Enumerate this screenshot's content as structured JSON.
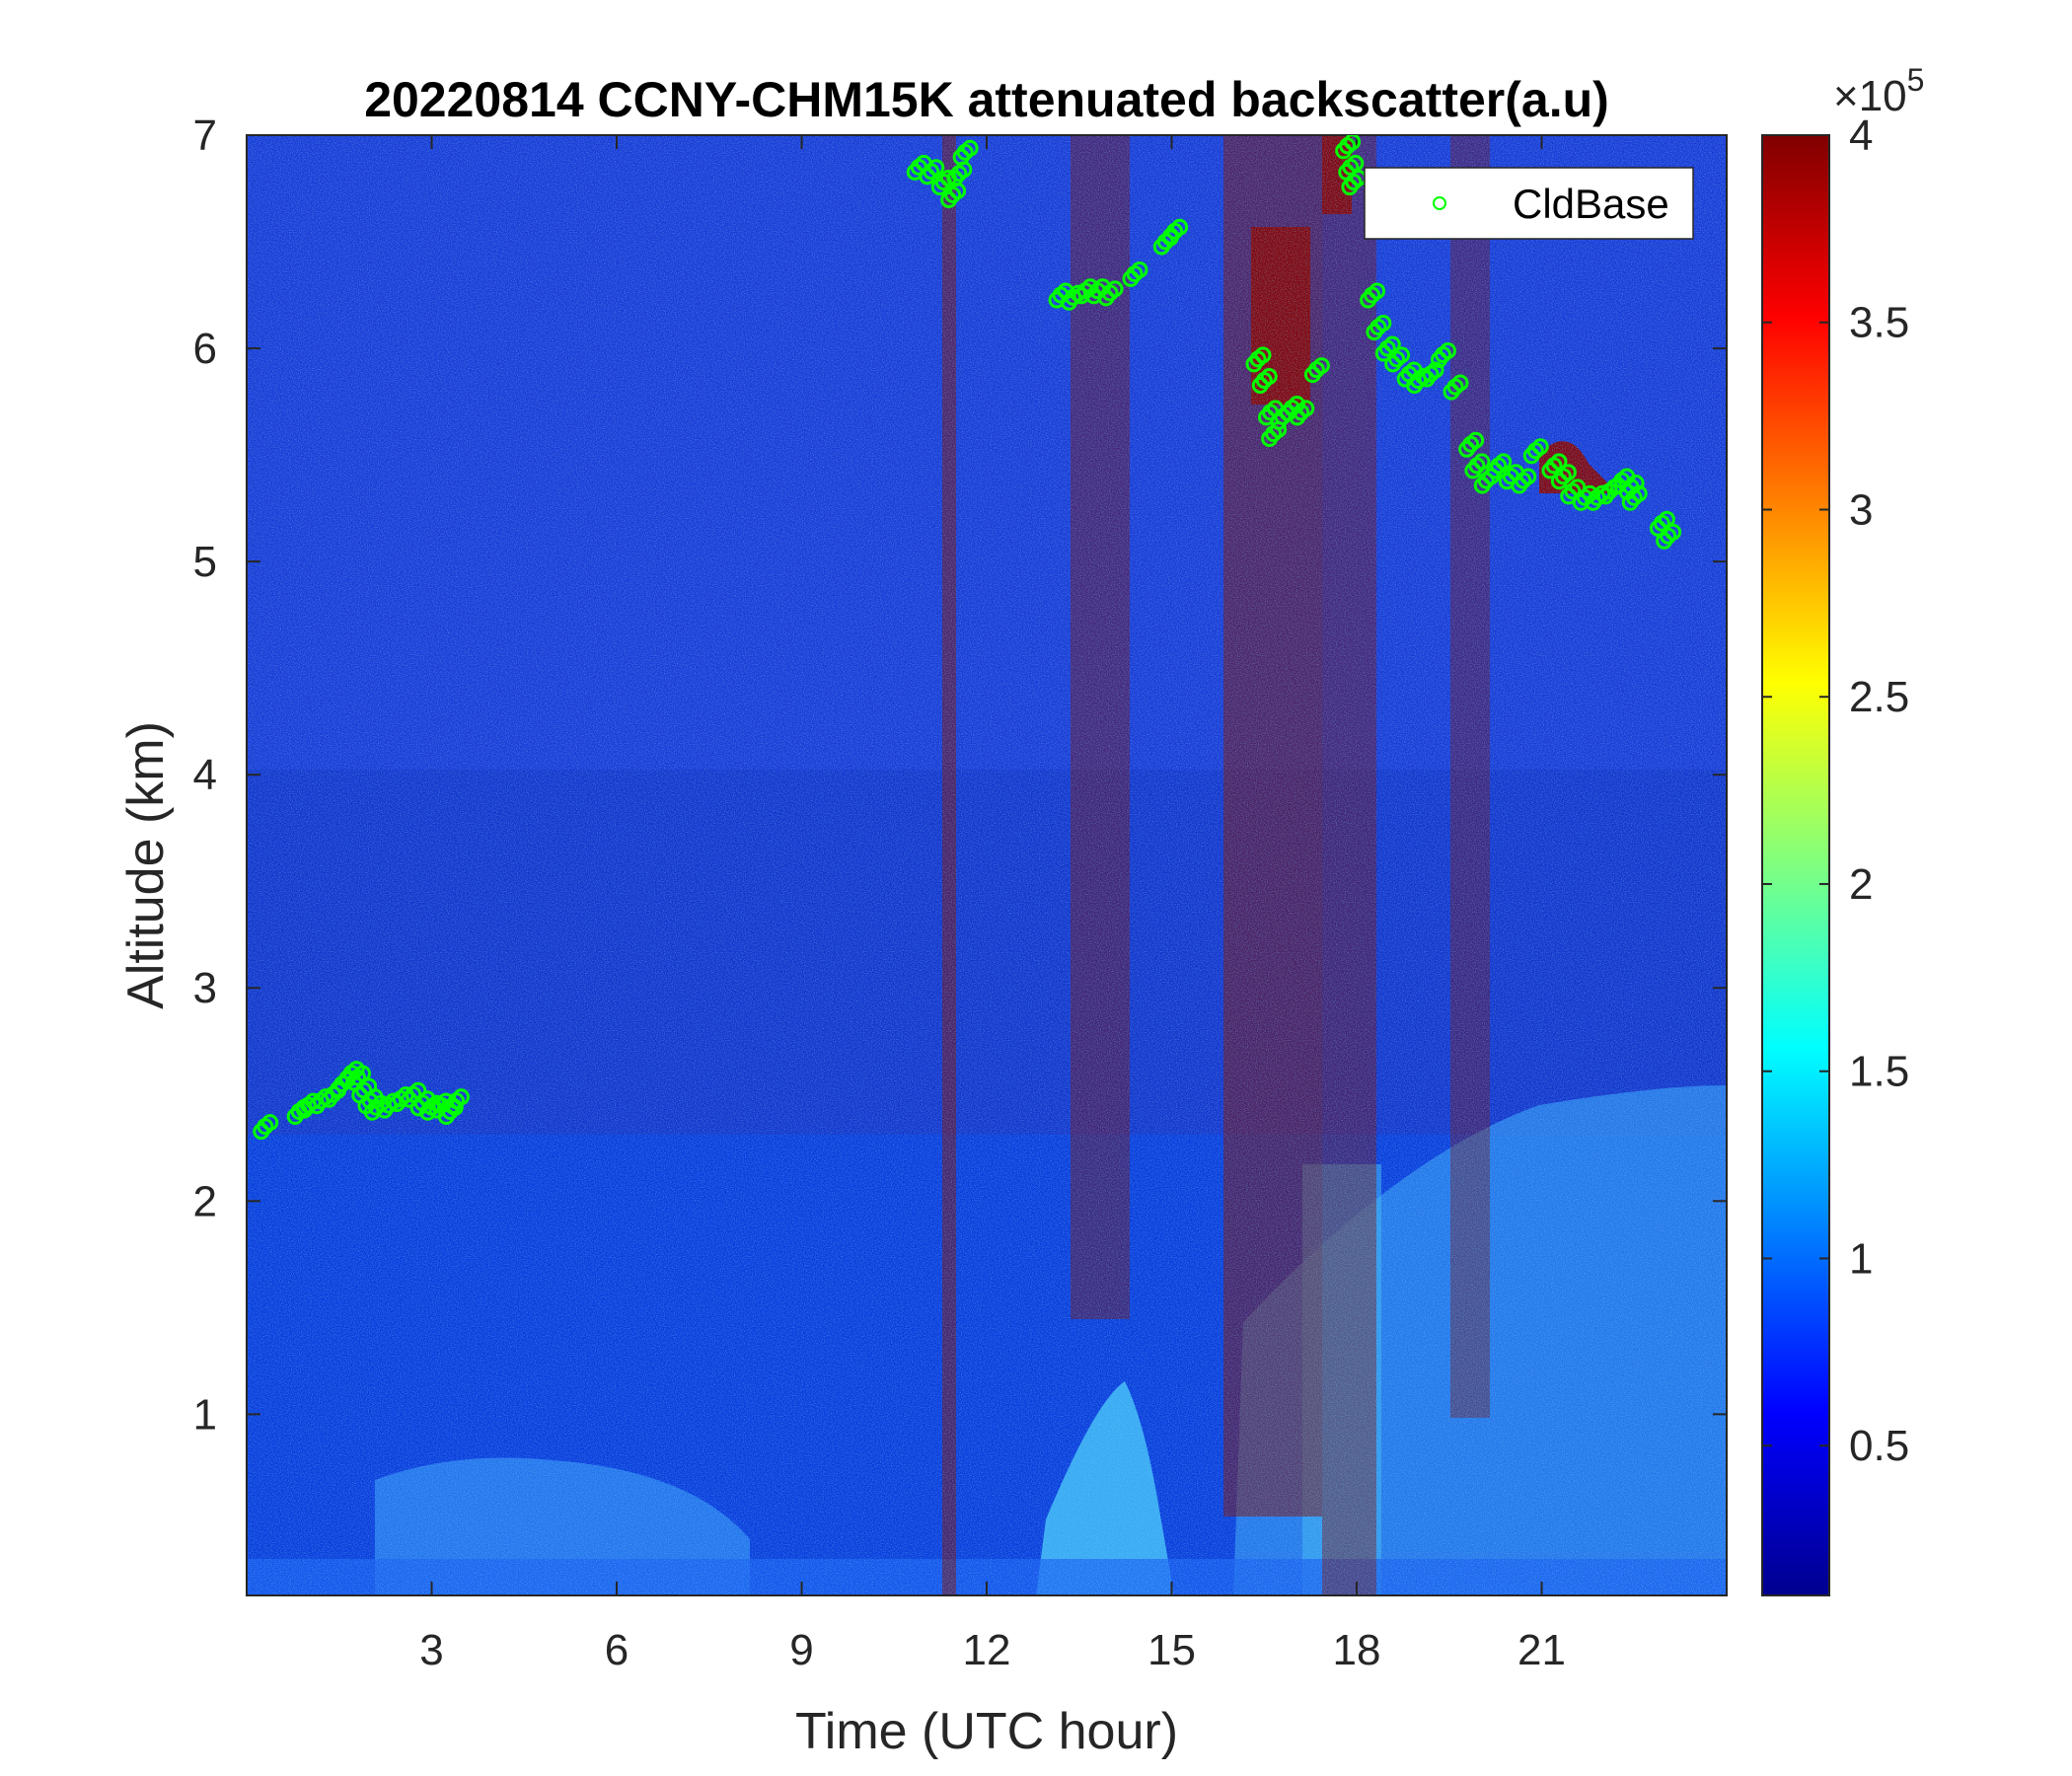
{
  "chart_data": {
    "type": "heatmap",
    "title": "20220814 CCNY-CHM15K attenuated backscatter(a.u)",
    "xlabel": "Time (UTC hour)",
    "ylabel": "Altitude (km)",
    "xlim": [
      0,
      24
    ],
    "ylim": [
      0.15,
      7
    ],
    "x_ticks": [
      "3",
      "6",
      "9",
      "12",
      "15",
      "18",
      "21"
    ],
    "y_ticks": [
      "1",
      "2",
      "3",
      "4",
      "5",
      "6",
      "7"
    ],
    "colorbar": {
      "colormap": "jet",
      "range": [
        0.1,
        4
      ],
      "ticks": [
        "0.5",
        "1",
        "1.5",
        "2",
        "2.5",
        "3",
        "3.5",
        "4"
      ],
      "exponent_label": "×10",
      "exponent": "5"
    },
    "legend": {
      "position": "top-right",
      "entries": [
        "CldBase"
      ]
    },
    "series": [
      {
        "name": "CldBase",
        "marker": "circle",
        "color": "#00ff00",
        "points": [
          [
            0.3,
            2.35
          ],
          [
            0.85,
            2.42
          ],
          [
            1.0,
            2.45
          ],
          [
            1.2,
            2.47
          ],
          [
            1.4,
            2.5
          ],
          [
            1.55,
            2.55
          ],
          [
            1.7,
            2.6
          ],
          [
            1.8,
            2.58
          ],
          [
            1.9,
            2.52
          ],
          [
            2.0,
            2.47
          ],
          [
            2.1,
            2.44
          ],
          [
            2.3,
            2.45
          ],
          [
            2.5,
            2.48
          ],
          [
            2.7,
            2.5
          ],
          [
            2.85,
            2.46
          ],
          [
            3.0,
            2.44
          ],
          [
            3.15,
            2.45
          ],
          [
            3.3,
            2.42
          ],
          [
            3.4,
            2.47
          ],
          [
            10.9,
            6.85
          ],
          [
            11.1,
            6.83
          ],
          [
            11.3,
            6.78
          ],
          [
            11.45,
            6.72
          ],
          [
            11.55,
            6.82
          ],
          [
            11.65,
            6.92
          ],
          [
            13.2,
            6.25
          ],
          [
            13.4,
            6.24
          ],
          [
            13.6,
            6.27
          ],
          [
            13.8,
            6.27
          ],
          [
            14.0,
            6.26
          ],
          [
            14.4,
            6.35
          ],
          [
            14.9,
            6.5
          ],
          [
            15.05,
            6.55
          ],
          [
            16.4,
            5.95
          ],
          [
            16.5,
            5.85
          ],
          [
            16.6,
            5.7
          ],
          [
            16.65,
            5.6
          ],
          [
            16.8,
            5.68
          ],
          [
            16.95,
            5.72
          ],
          [
            17.1,
            5.7
          ],
          [
            17.35,
            5.9
          ],
          [
            17.85,
            6.95
          ],
          [
            17.9,
            6.85
          ],
          [
            17.95,
            6.78
          ],
          [
            18.25,
            6.25
          ],
          [
            18.35,
            6.1
          ],
          [
            18.5,
            6.0
          ],
          [
            18.65,
            5.95
          ],
          [
            18.85,
            5.88
          ],
          [
            19.0,
            5.85
          ],
          [
            19.2,
            5.88
          ],
          [
            19.4,
            5.97
          ],
          [
            19.6,
            5.82
          ],
          [
            19.85,
            5.55
          ],
          [
            19.95,
            5.45
          ],
          [
            20.1,
            5.38
          ],
          [
            20.3,
            5.45
          ],
          [
            20.5,
            5.4
          ],
          [
            20.7,
            5.38
          ],
          [
            20.9,
            5.52
          ],
          [
            21.2,
            5.45
          ],
          [
            21.35,
            5.4
          ],
          [
            21.5,
            5.33
          ],
          [
            21.7,
            5.3
          ],
          [
            21.9,
            5.3
          ],
          [
            22.1,
            5.33
          ],
          [
            22.3,
            5.38
          ],
          [
            22.45,
            5.35
          ],
          [
            22.5,
            5.3
          ],
          [
            22.95,
            5.18
          ],
          [
            23.05,
            5.12
          ]
        ]
      }
    ]
  }
}
